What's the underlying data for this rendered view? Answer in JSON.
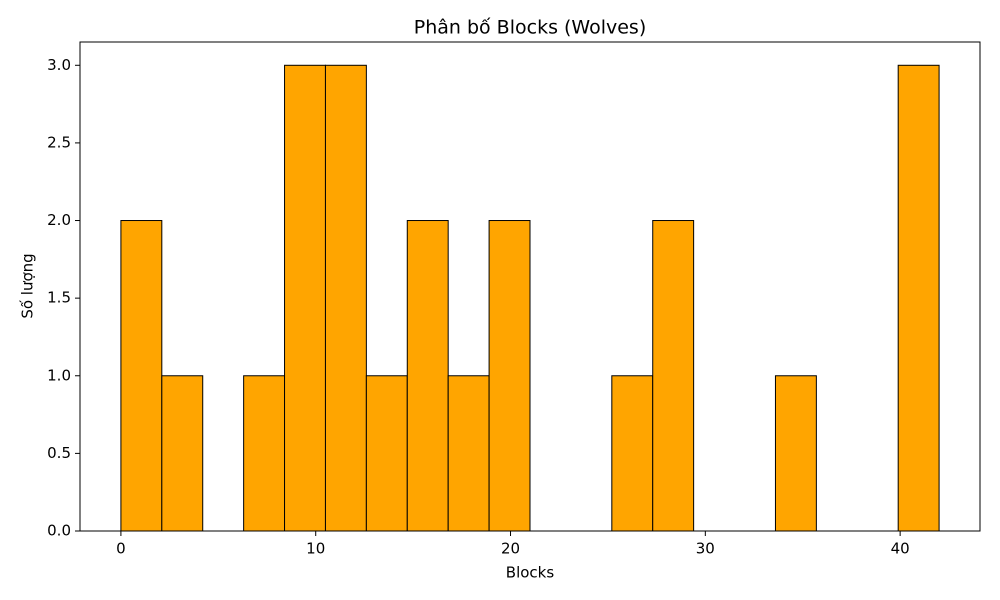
{
  "chart_data": {
    "type": "histogram",
    "title": "Phân bố Blocks (Wolves)",
    "x_label": "Blocks",
    "y_label": "Số lượng",
    "bins": [
      0,
      2.1,
      4.2,
      6.3,
      8.4,
      10.5,
      12.6,
      14.7,
      16.8,
      18.9,
      21,
      23.1,
      25.2,
      27.3,
      29.4,
      31.5,
      33.6,
      35.7,
      37.8,
      39.9,
      42
    ],
    "values": [
      2,
      1,
      0,
      1,
      3,
      3,
      1,
      2,
      1,
      2,
      0,
      0,
      1,
      2,
      0,
      0,
      1,
      0,
      0,
      3
    ],
    "color": "#ffa500",
    "edgecolor": "#000000",
    "xlim": [
      -2.1,
      44.1
    ],
    "xticks": [
      0,
      10,
      20,
      30,
      40
    ],
    "ylim": [
      0,
      3.15
    ],
    "yticks": [
      {
        "value": 0,
        "label": "0.0"
      },
      {
        "value": 0.5,
        "label": "0.5"
      },
      {
        "value": 1,
        "label": "1.0"
      },
      {
        "value": 1.5,
        "label": "1.5"
      },
      {
        "value": 2,
        "label": "2.0"
      },
      {
        "value": 2.5,
        "label": "2.5"
      },
      {
        "value": 3,
        "label": "3.0"
      }
    ],
    "grid": false
  }
}
